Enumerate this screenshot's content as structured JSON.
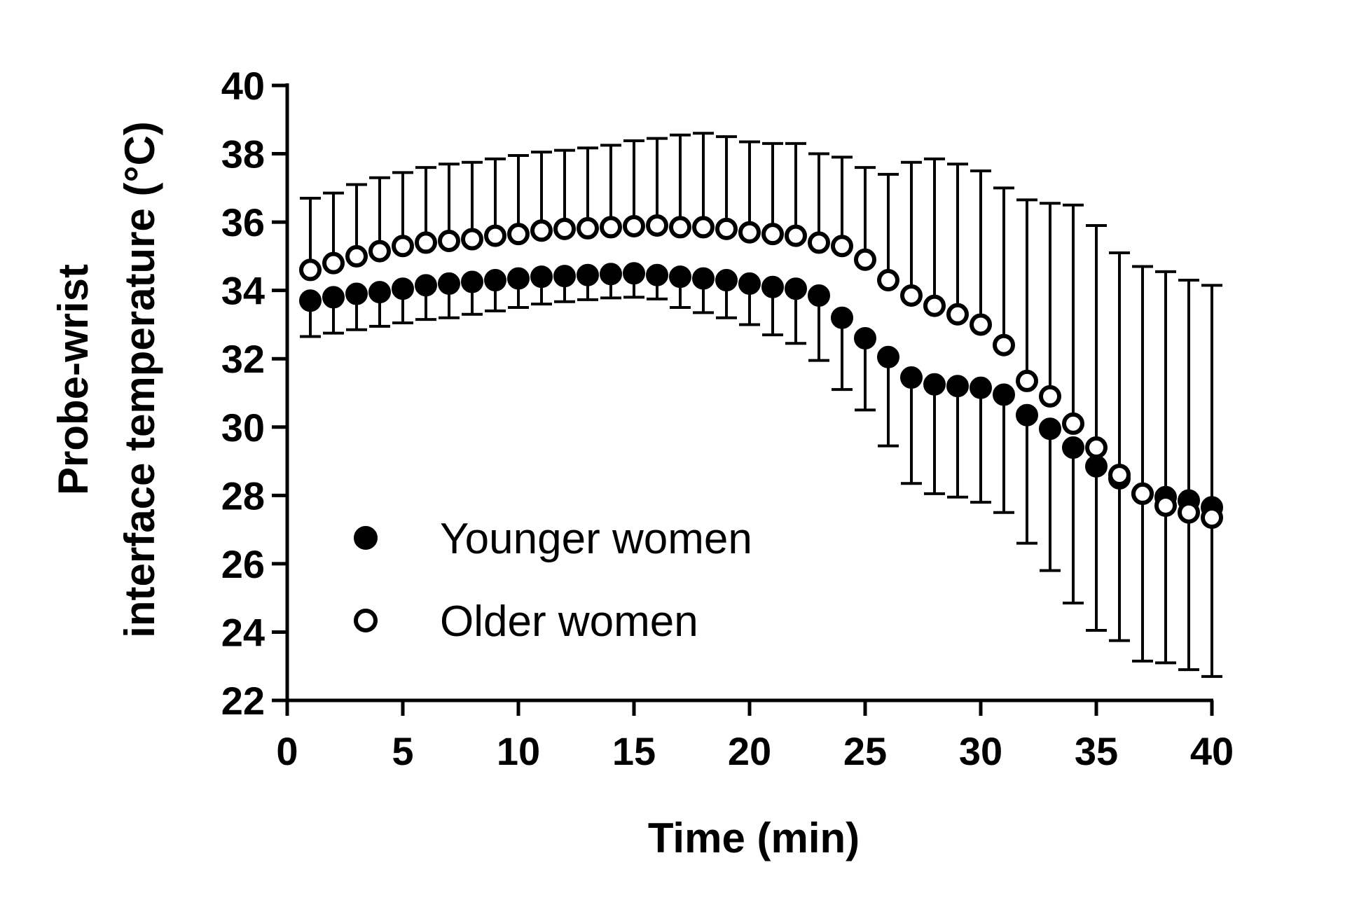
{
  "chart_data": {
    "type": "scatter",
    "xlabel": "Time (min)",
    "ylabel_lines": [
      "Probe-wrist",
      "interface temperature (°C)"
    ],
    "xlim": [
      0,
      40
    ],
    "ylim": [
      22,
      40
    ],
    "xticks": [
      "0",
      "5",
      "10",
      "15",
      "20",
      "25",
      "30",
      "35",
      "40"
    ],
    "yticks": [
      "22",
      "24",
      "26",
      "28",
      "30",
      "32",
      "34",
      "36",
      "38",
      "40"
    ],
    "grid": false,
    "legend_position": "bottom-left",
    "x": [
      1,
      2,
      3,
      4,
      5,
      6,
      7,
      8,
      9,
      10,
      11,
      12,
      13,
      14,
      15,
      16,
      17,
      18,
      19,
      20,
      21,
      22,
      23,
      24,
      25,
      26,
      27,
      28,
      29,
      30,
      31,
      32,
      33,
      34,
      35,
      36,
      37,
      38,
      39,
      40
    ],
    "series": [
      {
        "name": "Younger women",
        "marker": "filled-circle",
        "error_direction": "down",
        "values": [
          33.7,
          33.8,
          33.9,
          33.95,
          34.05,
          34.15,
          34.2,
          34.25,
          34.3,
          34.35,
          34.4,
          34.42,
          34.45,
          34.48,
          34.5,
          34.45,
          34.4,
          34.35,
          34.3,
          34.2,
          34.1,
          34.05,
          33.85,
          33.2,
          32.6,
          32.05,
          31.45,
          31.25,
          31.2,
          31.15,
          30.95,
          30.35,
          29.95,
          29.4,
          28.85,
          28.5,
          28.05,
          27.95,
          27.85,
          27.65
        ],
        "error": [
          1.05,
          1.05,
          1.05,
          1.0,
          1.0,
          1.0,
          1.0,
          0.95,
          0.9,
          0.85,
          0.8,
          0.75,
          0.72,
          0.7,
          0.7,
          0.7,
          0.9,
          1.0,
          1.1,
          1.2,
          1.4,
          1.6,
          1.9,
          2.1,
          2.1,
          2.6,
          3.1,
          3.2,
          3.25,
          3.35,
          3.45,
          3.75,
          4.15,
          4.55,
          4.8,
          4.75,
          4.9,
          4.85,
          4.95,
          4.95
        ]
      },
      {
        "name": "Older women",
        "marker": "open-circle",
        "error_direction": "up",
        "values": [
          34.6,
          34.8,
          35.0,
          35.15,
          35.3,
          35.4,
          35.45,
          35.5,
          35.6,
          35.65,
          35.75,
          35.8,
          35.82,
          35.85,
          35.88,
          35.9,
          35.85,
          35.85,
          35.8,
          35.7,
          35.65,
          35.6,
          35.4,
          35.3,
          34.9,
          34.3,
          33.85,
          33.55,
          33.3,
          33.0,
          32.4,
          31.35,
          30.9,
          30.1,
          29.4,
          28.6,
          28.05,
          27.7,
          27.5,
          27.35
        ],
        "error": [
          2.1,
          2.05,
          2.1,
          2.15,
          2.15,
          2.2,
          2.25,
          2.25,
          2.25,
          2.3,
          2.3,
          2.3,
          2.35,
          2.4,
          2.5,
          2.55,
          2.7,
          2.75,
          2.7,
          2.65,
          2.65,
          2.7,
          2.6,
          2.6,
          2.7,
          3.1,
          3.9,
          4.3,
          4.4,
          4.5,
          4.6,
          5.3,
          5.65,
          6.4,
          6.5,
          6.5,
          6.65,
          6.85,
          6.8,
          6.8
        ]
      }
    ]
  }
}
